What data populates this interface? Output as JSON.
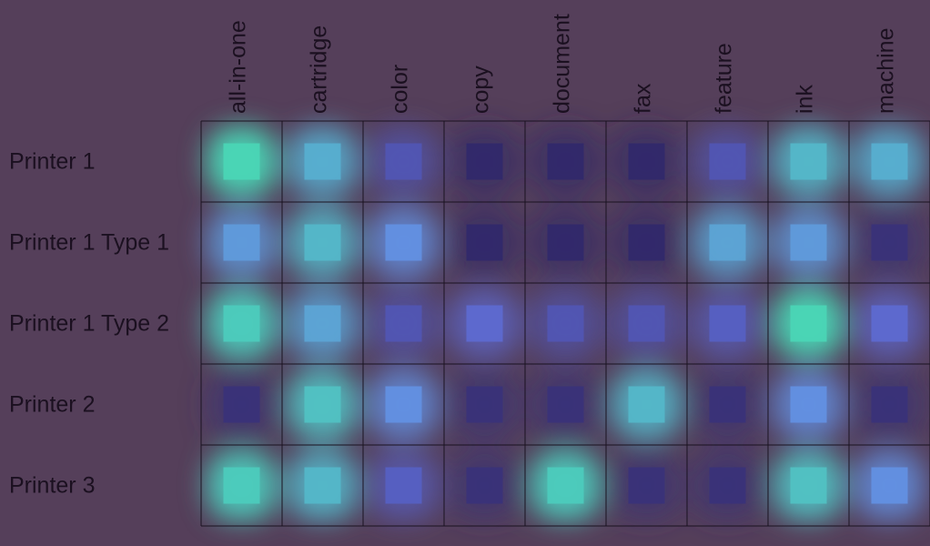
{
  "chart_data": {
    "type": "heatmap",
    "columns": [
      "all-in-one",
      "cartridge",
      "color",
      "copy",
      "document",
      "fax",
      "feature",
      "ink",
      "machine"
    ],
    "rows": [
      "Printer 1",
      "Printer 1 Type 1",
      "Printer 1 Type 2",
      "Printer 2",
      "Printer 3"
    ],
    "values": [
      [
        0.95,
        0.75,
        0.3,
        0.05,
        0.05,
        0.05,
        0.3,
        0.8,
        0.75
      ],
      [
        0.65,
        0.8,
        0.6,
        0.05,
        0.05,
        0.05,
        0.7,
        0.65,
        0.1
      ],
      [
        0.9,
        0.7,
        0.3,
        0.4,
        0.3,
        0.3,
        0.35,
        0.95,
        0.4
      ],
      [
        0.1,
        0.85,
        0.6,
        0.1,
        0.1,
        0.8,
        0.1,
        0.6,
        0.1
      ],
      [
        0.9,
        0.8,
        0.35,
        0.1,
        0.9,
        0.1,
        0.1,
        0.85,
        0.6
      ]
    ],
    "colors": {
      "background": "#553f5a",
      "low": "#2b1f5c",
      "mid": "#6a7df0",
      "high": "#46e0b0",
      "grid": "#1a1220",
      "text": "#1b1020"
    },
    "legend": "none",
    "grid": true
  }
}
